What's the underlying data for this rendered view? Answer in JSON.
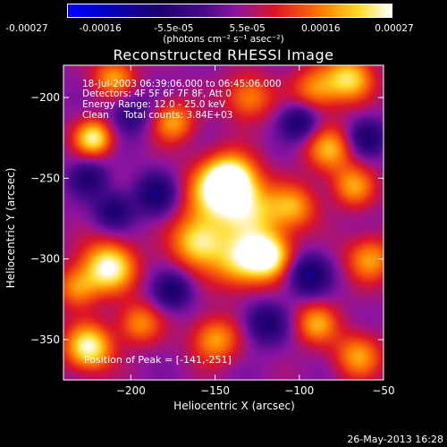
{
  "chart_data": {
    "type": "heatmap",
    "title": "Reconstructed RHESSI Image",
    "xlabel": "Heliocentric X (arcsec)",
    "ylabel": "Heliocentric Y (arcsec)",
    "xlim": [
      -240,
      -50
    ],
    "ylim": [
      -375,
      -180
    ],
    "x_ticks": [
      -200,
      -150,
      -100,
      -50
    ],
    "y_ticks": [
      -200,
      -250,
      -300,
      -350
    ],
    "colorbar": {
      "range": [
        -0.00027,
        0.00027
      ],
      "tick_labels": [
        "-0.00027",
        "-0.00016",
        "-5.5e-05",
        "5.5e-05",
        "0.00016",
        "0.00027"
      ],
      "units": "(photons cm⁻² s⁻¹ asec⁻²)"
    },
    "annotations": {
      "time_range": "18-Jul-2003 06:39:06.000 to 06:45:06.000",
      "detectors": "Detectors: 4F 5F 6F 7F 8F, Att 0",
      "energy_range": "Energy Range: 12.0 - 25.0 keV",
      "method_counts": "Clean     Total counts: 3.84E+03",
      "peak": "Position of Peak = [-141,-251]"
    },
    "peak_position": [
      -141,
      -251
    ],
    "blobs": [
      {
        "x": -141,
        "y": -251,
        "v": 1.0,
        "s": 11
      },
      {
        "x": -150,
        "y": -262,
        "v": 0.6,
        "s": 14
      },
      {
        "x": -128,
        "y": -272,
        "v": 0.6,
        "s": 13
      },
      {
        "x": -160,
        "y": -290,
        "v": 0.78,
        "s": 11
      },
      {
        "x": -135,
        "y": -302,
        "v": 0.7,
        "s": 12
      },
      {
        "x": -118,
        "y": -298,
        "v": 0.88,
        "s": 10
      },
      {
        "x": -103,
        "y": -268,
        "v": 0.55,
        "s": 10
      },
      {
        "x": -82,
        "y": -232,
        "v": 0.62,
        "s": 10
      },
      {
        "x": -68,
        "y": -255,
        "v": 0.58,
        "s": 9
      },
      {
        "x": -58,
        "y": -300,
        "v": 0.6,
        "s": 10
      },
      {
        "x": -213,
        "y": -305,
        "v": 0.95,
        "s": 11
      },
      {
        "x": -232,
        "y": -318,
        "v": 0.55,
        "s": 9
      },
      {
        "x": -222,
        "y": -225,
        "v": 0.85,
        "s": 8
      },
      {
        "x": -175,
        "y": -215,
        "v": 0.6,
        "s": 9
      },
      {
        "x": -130,
        "y": -200,
        "v": 0.55,
        "s": 10
      },
      {
        "x": -90,
        "y": -195,
        "v": 0.55,
        "s": 10
      },
      {
        "x": -70,
        "y": -188,
        "v": 0.75,
        "s": 10
      },
      {
        "x": -210,
        "y": -188,
        "v": 0.6,
        "s": 9
      },
      {
        "x": -225,
        "y": -355,
        "v": 0.92,
        "s": 10
      },
      {
        "x": -195,
        "y": -340,
        "v": 0.55,
        "s": 9
      },
      {
        "x": -150,
        "y": -350,
        "v": 0.62,
        "s": 10
      },
      {
        "x": -90,
        "y": -340,
        "v": 0.6,
        "s": 9
      },
      {
        "x": -65,
        "y": -360,
        "v": 0.6,
        "s": 10
      },
      {
        "x": -100,
        "y": -215,
        "v": -0.55,
        "s": 8
      },
      {
        "x": -185,
        "y": -260,
        "v": -0.55,
        "s": 9
      },
      {
        "x": -210,
        "y": -270,
        "v": -0.5,
        "s": 8
      },
      {
        "x": -95,
        "y": -310,
        "v": -0.6,
        "s": 9
      },
      {
        "x": -175,
        "y": -320,
        "v": -0.5,
        "s": 8
      },
      {
        "x": -120,
        "y": -340,
        "v": -0.5,
        "s": 9
      },
      {
        "x": -60,
        "y": -225,
        "v": -0.5,
        "s": 8
      },
      {
        "x": -225,
        "y": -250,
        "v": -0.45,
        "s": 8
      },
      {
        "x": -200,
        "y": -210,
        "v": -0.4,
        "s": 9
      }
    ]
  }
}
